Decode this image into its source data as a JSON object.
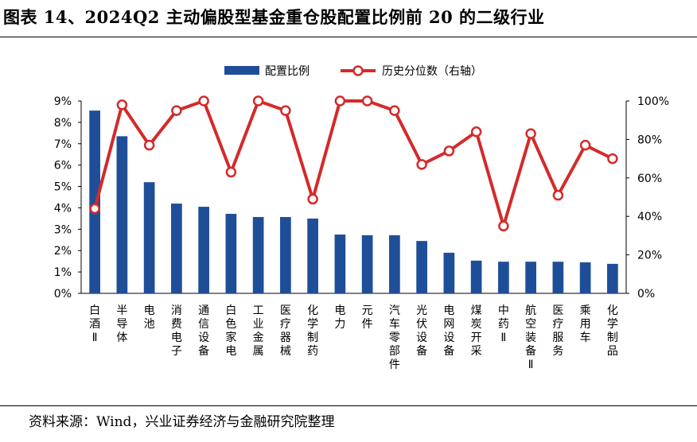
{
  "title": "图表 14、2024Q2 主动偏股型基金重仓股配置比例前 20 的二级行业",
  "source": "资料来源：Wind，兴业证券经济与金融研究院整理",
  "chart_data": {
    "type": "bar+line",
    "categories": [
      "白酒Ⅱ",
      "半导体",
      "电池",
      "消费电子",
      "通信设备",
      "白色家电",
      "工业金属",
      "医疗器械",
      "化学制药",
      "电力",
      "元件",
      "汽车零部件",
      "光伏设备",
      "电网设备",
      "煤炭开采",
      "中药Ⅱ",
      "航空装备Ⅱ",
      "医疗服务",
      "乘用车",
      "化学制品"
    ],
    "series": [
      {
        "name": "配置比例",
        "type": "bar",
        "axis": "left",
        "color": "#1f4e99",
        "values": [
          8.55,
          7.35,
          5.2,
          4.2,
          4.05,
          3.72,
          3.57,
          3.57,
          3.5,
          2.75,
          2.72,
          2.72,
          2.45,
          1.9,
          1.53,
          1.48,
          1.48,
          1.48,
          1.45,
          1.38
        ]
      },
      {
        "name": "历史分位数（右轴）",
        "type": "line",
        "axis": "right",
        "color": "#d42a2a",
        "values": [
          44,
          98,
          77,
          95,
          100,
          63,
          100,
          95,
          49,
          100,
          100,
          95,
          67,
          74,
          84,
          35,
          83,
          51,
          77,
          70
        ]
      }
    ],
    "left_axis": {
      "min": 0,
      "max": 9,
      "ticks": [
        "0%",
        "1%",
        "2%",
        "3%",
        "4%",
        "5%",
        "6%",
        "7%",
        "8%",
        "9%"
      ]
    },
    "right_axis": {
      "min": 0,
      "max": 100,
      "ticks": [
        "0%",
        "20%",
        "40%",
        "60%",
        "80%",
        "100%"
      ]
    },
    "legend": {
      "position": "top",
      "items": [
        "配置比例",
        "历史分位数（右轴）"
      ]
    },
    "grid": false
  }
}
